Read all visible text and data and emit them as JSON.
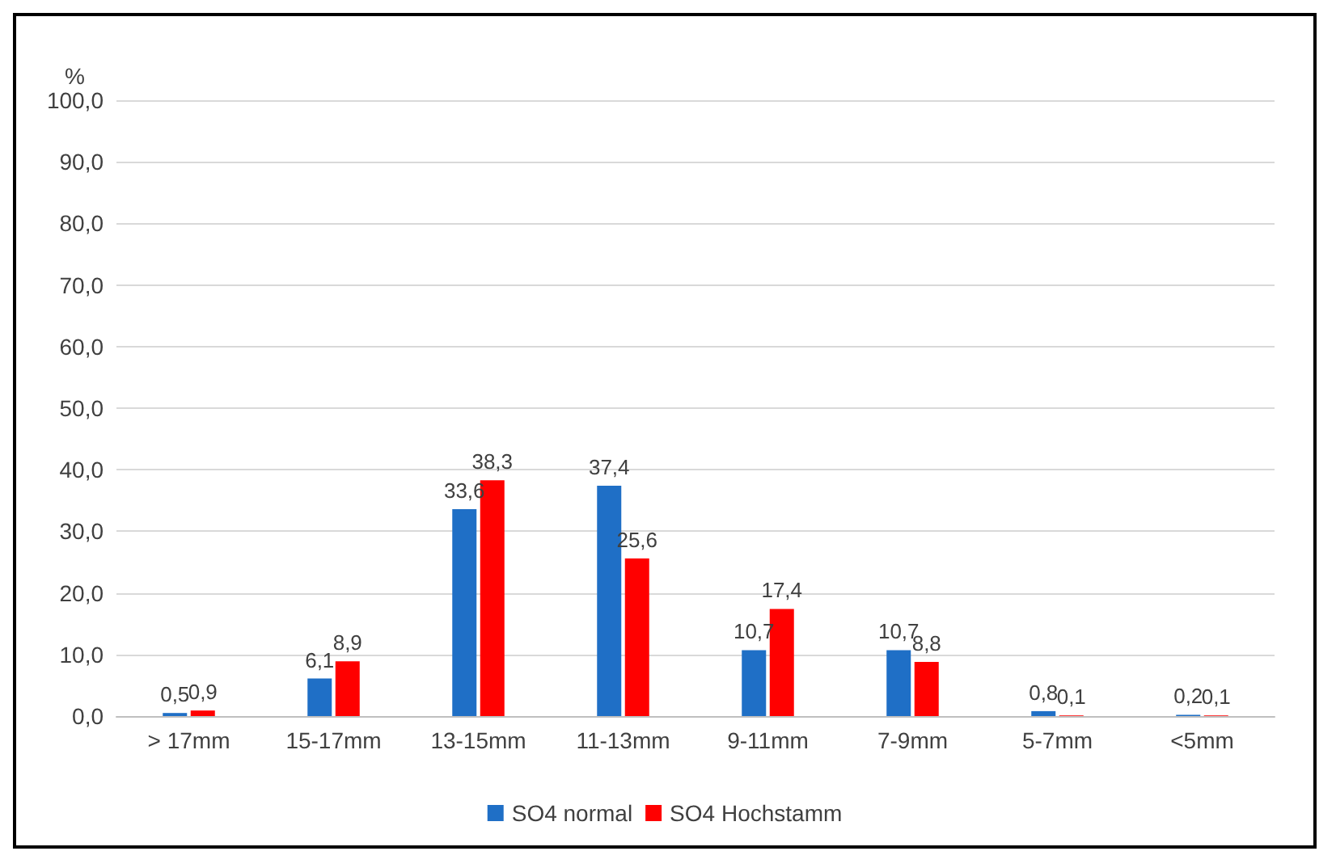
{
  "chart_data": {
    "type": "bar",
    "ylabel": "%",
    "categories": [
      "> 17mm",
      "15-17mm",
      "13-15mm",
      "11-13mm",
      "9-11mm",
      "7-9mm",
      "5-7mm",
      "<5mm"
    ],
    "series": [
      {
        "name": "SO4 normal",
        "color": "#1f6fc6",
        "values": [
          0.5,
          6.1,
          33.6,
          37.4,
          10.7,
          10.7,
          0.8,
          0.2
        ],
        "value_labels": [
          "0,5",
          "6,1",
          "33,6",
          "37,4",
          "10,7",
          "10,7",
          "0,8",
          "0,2"
        ]
      },
      {
        "name": "SO4 Hochstamm",
        "color": "#ff0000",
        "values": [
          0.9,
          8.9,
          38.3,
          25.6,
          17.4,
          8.8,
          0.1,
          0.1
        ],
        "value_labels": [
          "0,9",
          "8,9",
          "38,3",
          "25,6",
          "17,4",
          "8,8",
          "0,1",
          "0,1"
        ]
      }
    ],
    "ylim": [
      0,
      100
    ],
    "yticks": [
      {
        "value": 0,
        "label": "0,0"
      },
      {
        "value": 10,
        "label": "10,0"
      },
      {
        "value": 20,
        "label": "20,0"
      },
      {
        "value": 30,
        "label": "30,0"
      },
      {
        "value": 40,
        "label": "40,0"
      },
      {
        "value": 50,
        "label": "50,0"
      },
      {
        "value": 60,
        "label": "60,0"
      },
      {
        "value": 70,
        "label": "70,0"
      },
      {
        "value": 80,
        "label": "80,0"
      },
      {
        "value": 90,
        "label": "90,0"
      },
      {
        "value": 100,
        "label": "100,0"
      }
    ],
    "grid": "y",
    "legend": "bottom"
  }
}
